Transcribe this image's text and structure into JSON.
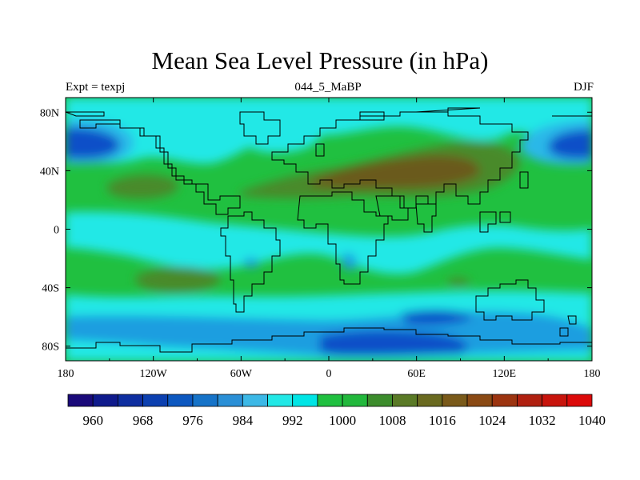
{
  "title": "Mean Sea Level Pressure (in hPa)",
  "subtitle_left": "Expt = texpj",
  "subtitle_center": "044_5_MaBP",
  "subtitle_right": "DJF",
  "map": {
    "lon_range": [
      -180,
      180
    ],
    "lat_range": [
      -90,
      90
    ],
    "x_ticks": [
      {
        "lon": -180,
        "label": "180"
      },
      {
        "lon": -120,
        "label": "120W"
      },
      {
        "lon": -60,
        "label": "60W"
      },
      {
        "lon": 0,
        "label": "0"
      },
      {
        "lon": 60,
        "label": "60E"
      },
      {
        "lon": 120,
        "label": "120E"
      },
      {
        "lon": 180,
        "label": "180"
      }
    ],
    "y_ticks": [
      {
        "lat": 80,
        "label": "80N"
      },
      {
        "lat": 40,
        "label": "40N"
      },
      {
        "lat": 0,
        "label": "0"
      },
      {
        "lat": -40,
        "label": "40S"
      },
      {
        "lat": -80,
        "label": "80S"
      }
    ]
  },
  "colorbar": {
    "colors": [
      "#1a0a7a",
      "#0f1a8c",
      "#0e2ea0",
      "#0c40b0",
      "#0d58c0",
      "#1673c8",
      "#2a8fd6",
      "#3cb8e6",
      "#22e8e6",
      "#00e5e5",
      "#20c040",
      "#22b83c",
      "#3c8c2c",
      "#5a7a26",
      "#6a6a20",
      "#7a5a1a",
      "#8a4a14",
      "#9c3410",
      "#b02010",
      "#c8140c",
      "#dc0a0a"
    ],
    "labels": [
      {
        "boundary": 1,
        "text": "960"
      },
      {
        "boundary": 3,
        "text": "968"
      },
      {
        "boundary": 5,
        "text": "976"
      },
      {
        "boundary": 7,
        "text": "984"
      },
      {
        "boundary": 9,
        "text": "992"
      },
      {
        "boundary": 11,
        "text": "1000"
      },
      {
        "boundary": 13,
        "text": "1008"
      },
      {
        "boundary": 15,
        "text": "1016"
      },
      {
        "boundary": 17,
        "text": "1024"
      },
      {
        "boundary": 19,
        "text": "1032"
      },
      {
        "boundary": 21,
        "text": "1040"
      }
    ]
  },
  "field_colors": {
    "low_deep": "#0a4fc8",
    "low": "#1a9ee0",
    "mid_low": "#2ab8e8",
    "normal": "#22e8e6",
    "high": "#20c040",
    "higher": "#4a8a2a",
    "highest": "#6a5a1c"
  }
}
